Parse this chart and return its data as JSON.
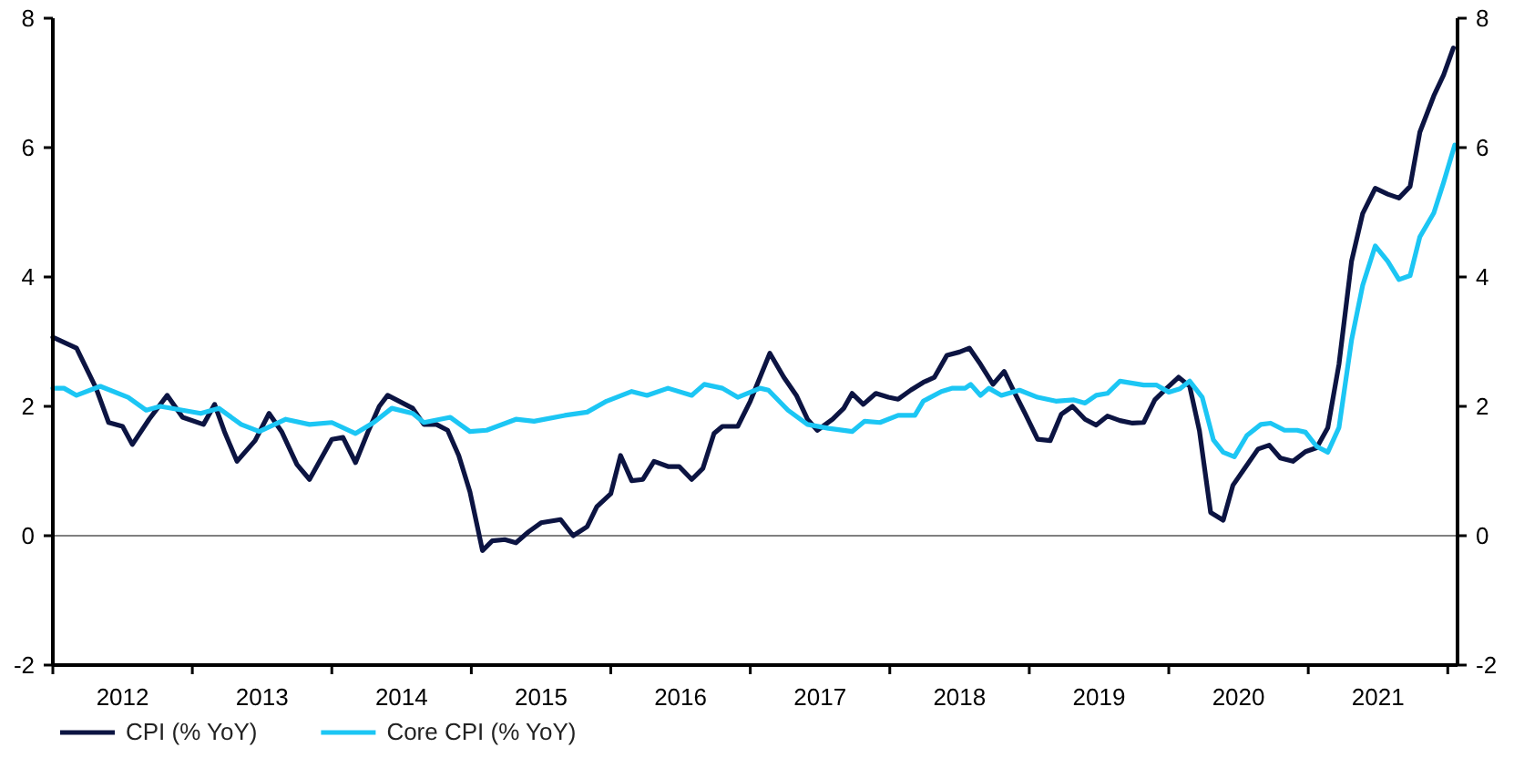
{
  "chart_data": {
    "type": "line",
    "xlim": [
      2012,
      2022.07
    ],
    "xticks": [
      {
        "value": 2012,
        "label": null
      },
      {
        "value": 2012.5,
        "label": "2012"
      },
      {
        "value": 2013,
        "label": null
      },
      {
        "value": 2013.5,
        "label": "2013"
      },
      {
        "value": 2014,
        "label": null
      },
      {
        "value": 2014.5,
        "label": "2014"
      },
      {
        "value": 2015,
        "label": null
      },
      {
        "value": 2015.5,
        "label": "2015"
      },
      {
        "value": 2016,
        "label": null
      },
      {
        "value": 2016.5,
        "label": "2016"
      },
      {
        "value": 2017,
        "label": null
      },
      {
        "value": 2017.5,
        "label": "2017"
      },
      {
        "value": 2018,
        "label": null
      },
      {
        "value": 2018.5,
        "label": "2018"
      },
      {
        "value": 2019,
        "label": null
      },
      {
        "value": 2019.5,
        "label": "2019"
      },
      {
        "value": 2020,
        "label": null
      },
      {
        "value": 2020.5,
        "label": "2020"
      },
      {
        "value": 2021,
        "label": null
      },
      {
        "value": 2021.5,
        "label": "2021"
      },
      {
        "value": 2022,
        "label": null
      }
    ],
    "ylim": [
      -2,
      8
    ],
    "yticks": [
      -2,
      0,
      2,
      4,
      6,
      8
    ],
    "y2lim": [
      -2,
      8
    ],
    "y2ticks": [
      -2,
      0,
      2,
      4,
      6,
      8
    ],
    "ref_lines": [
      {
        "axis": "y",
        "value": 0,
        "color": "#808080"
      }
    ],
    "grid": false,
    "legend": "bottom left",
    "marker": "none",
    "line_style": "solid",
    "series": [
      {
        "name": "CPI (% YoY)",
        "color": "#0c1442",
        "x": [
          2012.0,
          2012.17,
          2012.31,
          2012.4,
          2012.5,
          2012.57,
          2012.69,
          2012.82,
          2012.93,
          2013.08,
          2013.16,
          2013.23,
          2013.32,
          2013.45,
          2013.55,
          2013.64,
          2013.75,
          2013.84,
          2014.0,
          2014.08,
          2014.17,
          2014.26,
          2014.34,
          2014.4,
          2014.58,
          2014.66,
          2014.75,
          2014.83,
          2014.91,
          2014.99,
          2015.08,
          2015.15,
          2015.24,
          2015.32,
          2015.41,
          2015.5,
          2015.64,
          2015.73,
          2015.83,
          2015.9,
          2016.0,
          2016.07,
          2016.15,
          2016.23,
          2016.31,
          2016.41,
          2016.49,
          2016.58,
          2016.66,
          2016.74,
          2016.8,
          2016.91,
          2017.0,
          2017.07,
          2017.14,
          2017.24,
          2017.33,
          2017.41,
          2017.48,
          2017.59,
          2017.67,
          2017.73,
          2017.81,
          2017.9,
          2017.99,
          2018.06,
          2018.15,
          2018.24,
          2018.32,
          2018.41,
          2018.5,
          2018.57,
          2018.65,
          2018.74,
          2018.82,
          2018.89,
          2018.97,
          2019.06,
          2019.15,
          2019.23,
          2019.31,
          2019.4,
          2019.48,
          2019.56,
          2019.65,
          2019.74,
          2019.82,
          2019.9,
          2019.98,
          2020.07,
          2020.15,
          2020.22,
          2020.3,
          2020.39,
          2020.46,
          2020.55,
          2020.64,
          2020.72,
          2020.8,
          2020.89,
          2020.98,
          2021.06,
          2021.14,
          2021.22,
          2021.31,
          2021.39,
          2021.48,
          2021.57,
          2021.65,
          2021.73,
          2021.8,
          2021.9,
          2021.97,
          2022.04
        ],
        "values": [
          3.07,
          2.9,
          2.28,
          1.75,
          1.69,
          1.41,
          1.8,
          2.17,
          1.83,
          1.72,
          2.03,
          1.61,
          1.15,
          1.47,
          1.89,
          1.61,
          1.1,
          0.87,
          1.49,
          1.52,
          1.13,
          1.61,
          2.0,
          2.17,
          1.97,
          1.72,
          1.72,
          1.63,
          1.24,
          0.68,
          -0.23,
          -0.08,
          -0.06,
          -0.11,
          0.06,
          0.2,
          0.25,
          0.0,
          0.14,
          0.45,
          0.65,
          1.24,
          0.85,
          0.87,
          1.15,
          1.07,
          1.07,
          0.87,
          1.04,
          1.58,
          1.69,
          1.69,
          2.08,
          2.45,
          2.82,
          2.45,
          2.17,
          1.8,
          1.63,
          1.8,
          1.97,
          2.2,
          2.03,
          2.2,
          2.14,
          2.11,
          2.25,
          2.37,
          2.45,
          2.79,
          2.84,
          2.9,
          2.65,
          2.34,
          2.54,
          2.23,
          1.89,
          1.49,
          1.47,
          1.88,
          2.0,
          1.8,
          1.71,
          1.85,
          1.78,
          1.74,
          1.75,
          2.1,
          2.27,
          2.45,
          2.31,
          1.62,
          0.36,
          0.24,
          0.78,
          1.06,
          1.34,
          1.4,
          1.2,
          1.15,
          1.3,
          1.36,
          1.67,
          2.65,
          4.24,
          4.98,
          5.37,
          5.28,
          5.22,
          5.4,
          6.24,
          6.8,
          7.12,
          7.54
        ]
      },
      {
        "name": "Core CPI (% YoY)",
        "color": "#1cc6f4",
        "x": [
          2012.0,
          2012.08,
          2012.17,
          2012.34,
          2012.54,
          2012.67,
          2012.77,
          2012.93,
          2013.06,
          2013.19,
          2013.35,
          2013.48,
          2013.67,
          2013.84,
          2014.0,
          2014.17,
          2014.3,
          2014.43,
          2014.58,
          2014.66,
          2014.85,
          2014.99,
          2015.11,
          2015.32,
          2015.45,
          2015.67,
          2015.83,
          2015.97,
          2016.15,
          2016.26,
          2016.41,
          2016.58,
          2016.67,
          2016.8,
          2016.91,
          2017.07,
          2017.13,
          2017.27,
          2017.41,
          2017.56,
          2017.73,
          2017.82,
          2017.93,
          2018.06,
          2018.18,
          2018.24,
          2018.37,
          2018.45,
          2018.54,
          2018.58,
          2018.65,
          2018.71,
          2018.8,
          2018.93,
          2019.06,
          2019.19,
          2019.32,
          2019.4,
          2019.48,
          2019.56,
          2019.65,
          2019.82,
          2019.91,
          2020.0,
          2020.08,
          2020.15,
          2020.24,
          2020.32,
          2020.39,
          2020.47,
          2020.56,
          2020.66,
          2020.73,
          2020.83,
          2020.92,
          2020.98,
          2021.06,
          2021.14,
          2021.22,
          2021.31,
          2021.39,
          2021.48,
          2021.57,
          2021.65,
          2021.73,
          2021.8,
          2021.9,
          2021.97,
          2022.05
        ],
        "values": [
          2.28,
          2.28,
          2.17,
          2.31,
          2.14,
          1.94,
          2.0,
          1.94,
          1.89,
          1.97,
          1.72,
          1.61,
          1.8,
          1.72,
          1.75,
          1.58,
          1.75,
          1.97,
          1.89,
          1.75,
          1.83,
          1.61,
          1.63,
          1.8,
          1.77,
          1.86,
          1.91,
          2.08,
          2.23,
          2.17,
          2.28,
          2.17,
          2.34,
          2.28,
          2.14,
          2.28,
          2.25,
          1.94,
          1.72,
          1.66,
          1.61,
          1.77,
          1.75,
          1.86,
          1.86,
          2.08,
          2.23,
          2.28,
          2.28,
          2.34,
          2.17,
          2.28,
          2.17,
          2.25,
          2.14,
          2.08,
          2.1,
          2.05,
          2.17,
          2.2,
          2.39,
          2.33,
          2.33,
          2.22,
          2.27,
          2.39,
          2.14,
          1.48,
          1.29,
          1.22,
          1.55,
          1.72,
          1.74,
          1.63,
          1.63,
          1.6,
          1.38,
          1.29,
          1.67,
          3.02,
          3.87,
          4.48,
          4.24,
          3.96,
          4.02,
          4.62,
          4.99,
          5.46,
          6.04
        ]
      }
    ]
  }
}
